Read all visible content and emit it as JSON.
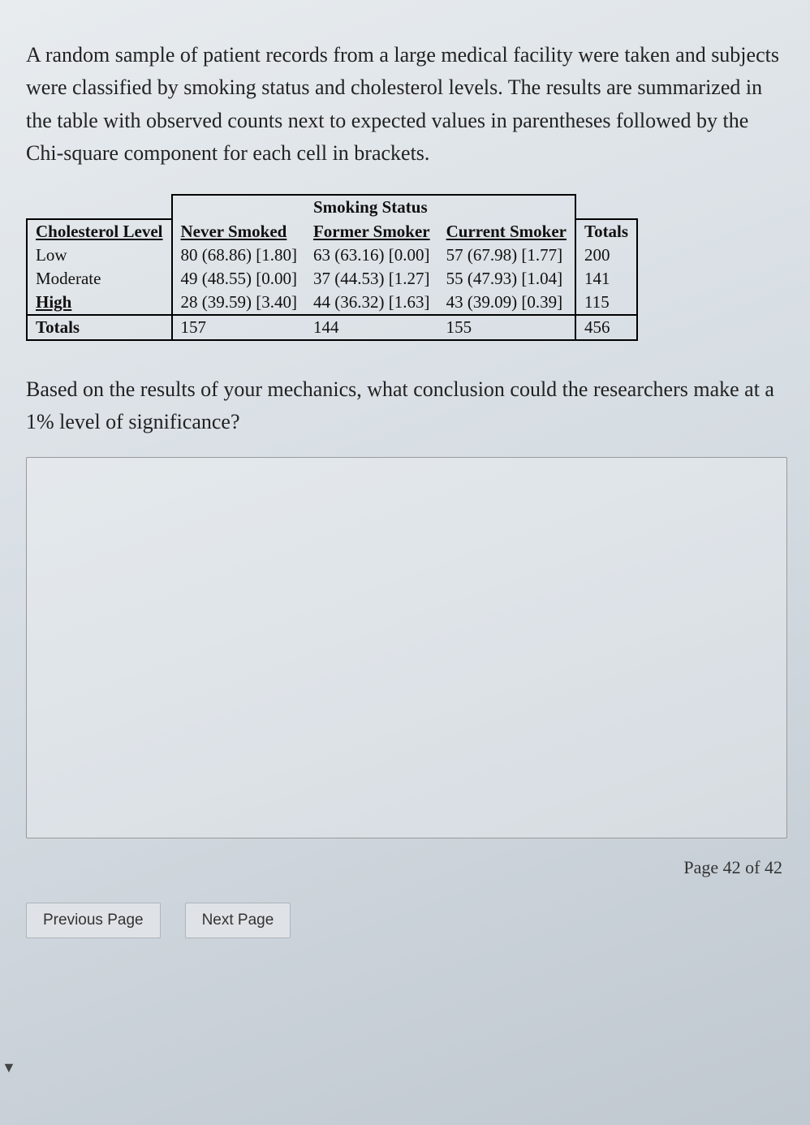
{
  "intro": "A random sample of patient records from a large medical facility were taken and subjects were classified by smoking status and cholesterol levels. The results are summarized in the table with observed counts next to expected values in parentheses followed by the Chi-square component for each cell in brackets.",
  "table": {
    "spanner": "Smoking Status",
    "corner_label": "Cholesterol Level",
    "col_headers": [
      "Never Smoked",
      "Former Smoker",
      "Current Smoker"
    ],
    "totals_header": "Totals",
    "rows": [
      {
        "label": "Low",
        "cells": [
          "80  (68.86) [1.80]",
          "63  (63.16) [0.00]",
          "57  (67.98) [1.77]"
        ],
        "total": "200"
      },
      {
        "label": "Moderate",
        "cells": [
          "49  (48.55) [0.00]",
          "37  (44.53) [1.27]",
          "55  (47.93) [1.04]"
        ],
        "total": "141"
      },
      {
        "label": "High",
        "cells": [
          "28  (39.59) [3.40]",
          "44  (36.32) [1.63]",
          "43  (39.09) [0.39]"
        ],
        "total": "115"
      }
    ],
    "totals_row_label": "Totals",
    "col_totals": [
      "157",
      "144",
      "155"
    ],
    "grand_total": "456",
    "fontsize": 21,
    "border_color": "#000000"
  },
  "question2": "Based on the results of your mechanics, what conclusion could the researchers make at a 1% level of significance?",
  "answer_placeholder": "",
  "pager": "Page 42 of 42",
  "nav": {
    "prev": "Previous Page",
    "next": "Next Page"
  },
  "colors": {
    "text": "#2a2a2a",
    "background_top": "#e8ecef",
    "background_bottom": "#c0c8d0",
    "button_bg": "#dfe3e7",
    "button_border": "#aeb5bc"
  }
}
